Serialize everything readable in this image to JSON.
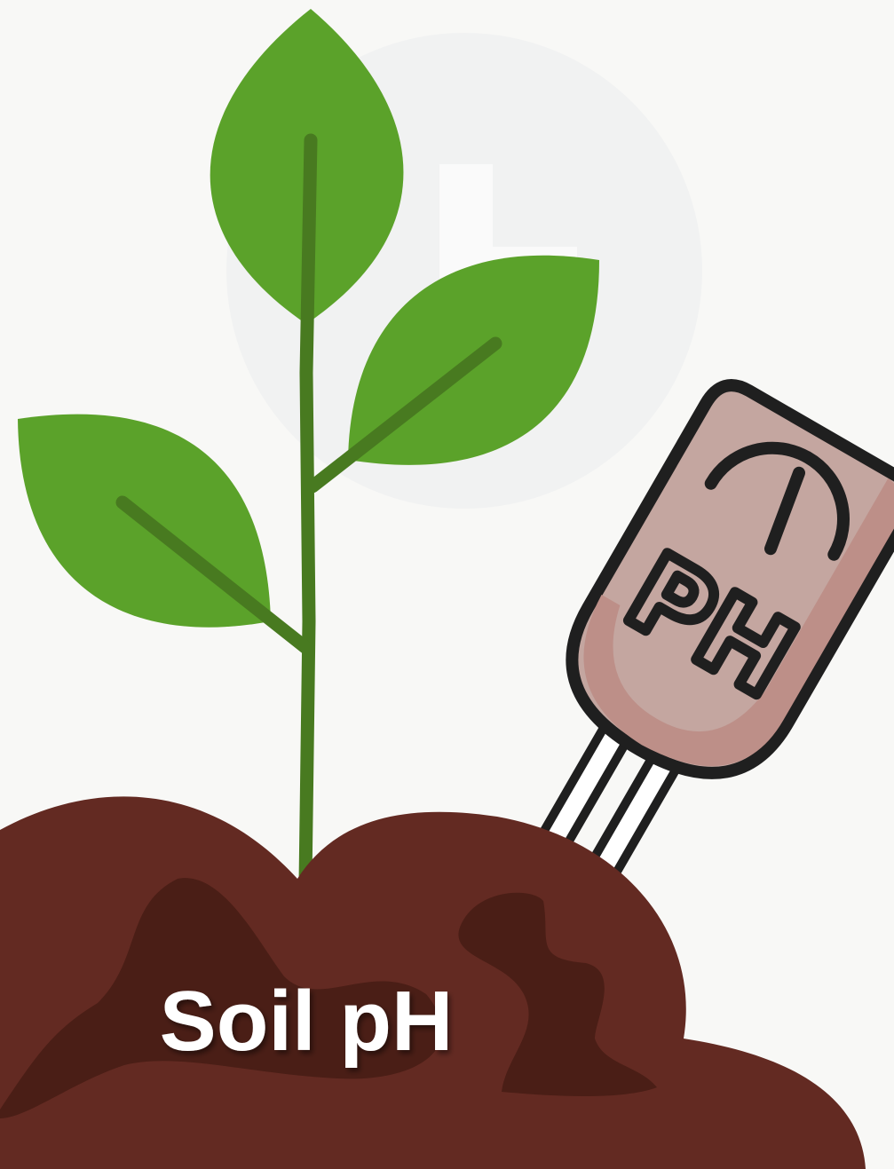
{
  "title": "Soil pH",
  "meter": {
    "label": "PH"
  }
}
